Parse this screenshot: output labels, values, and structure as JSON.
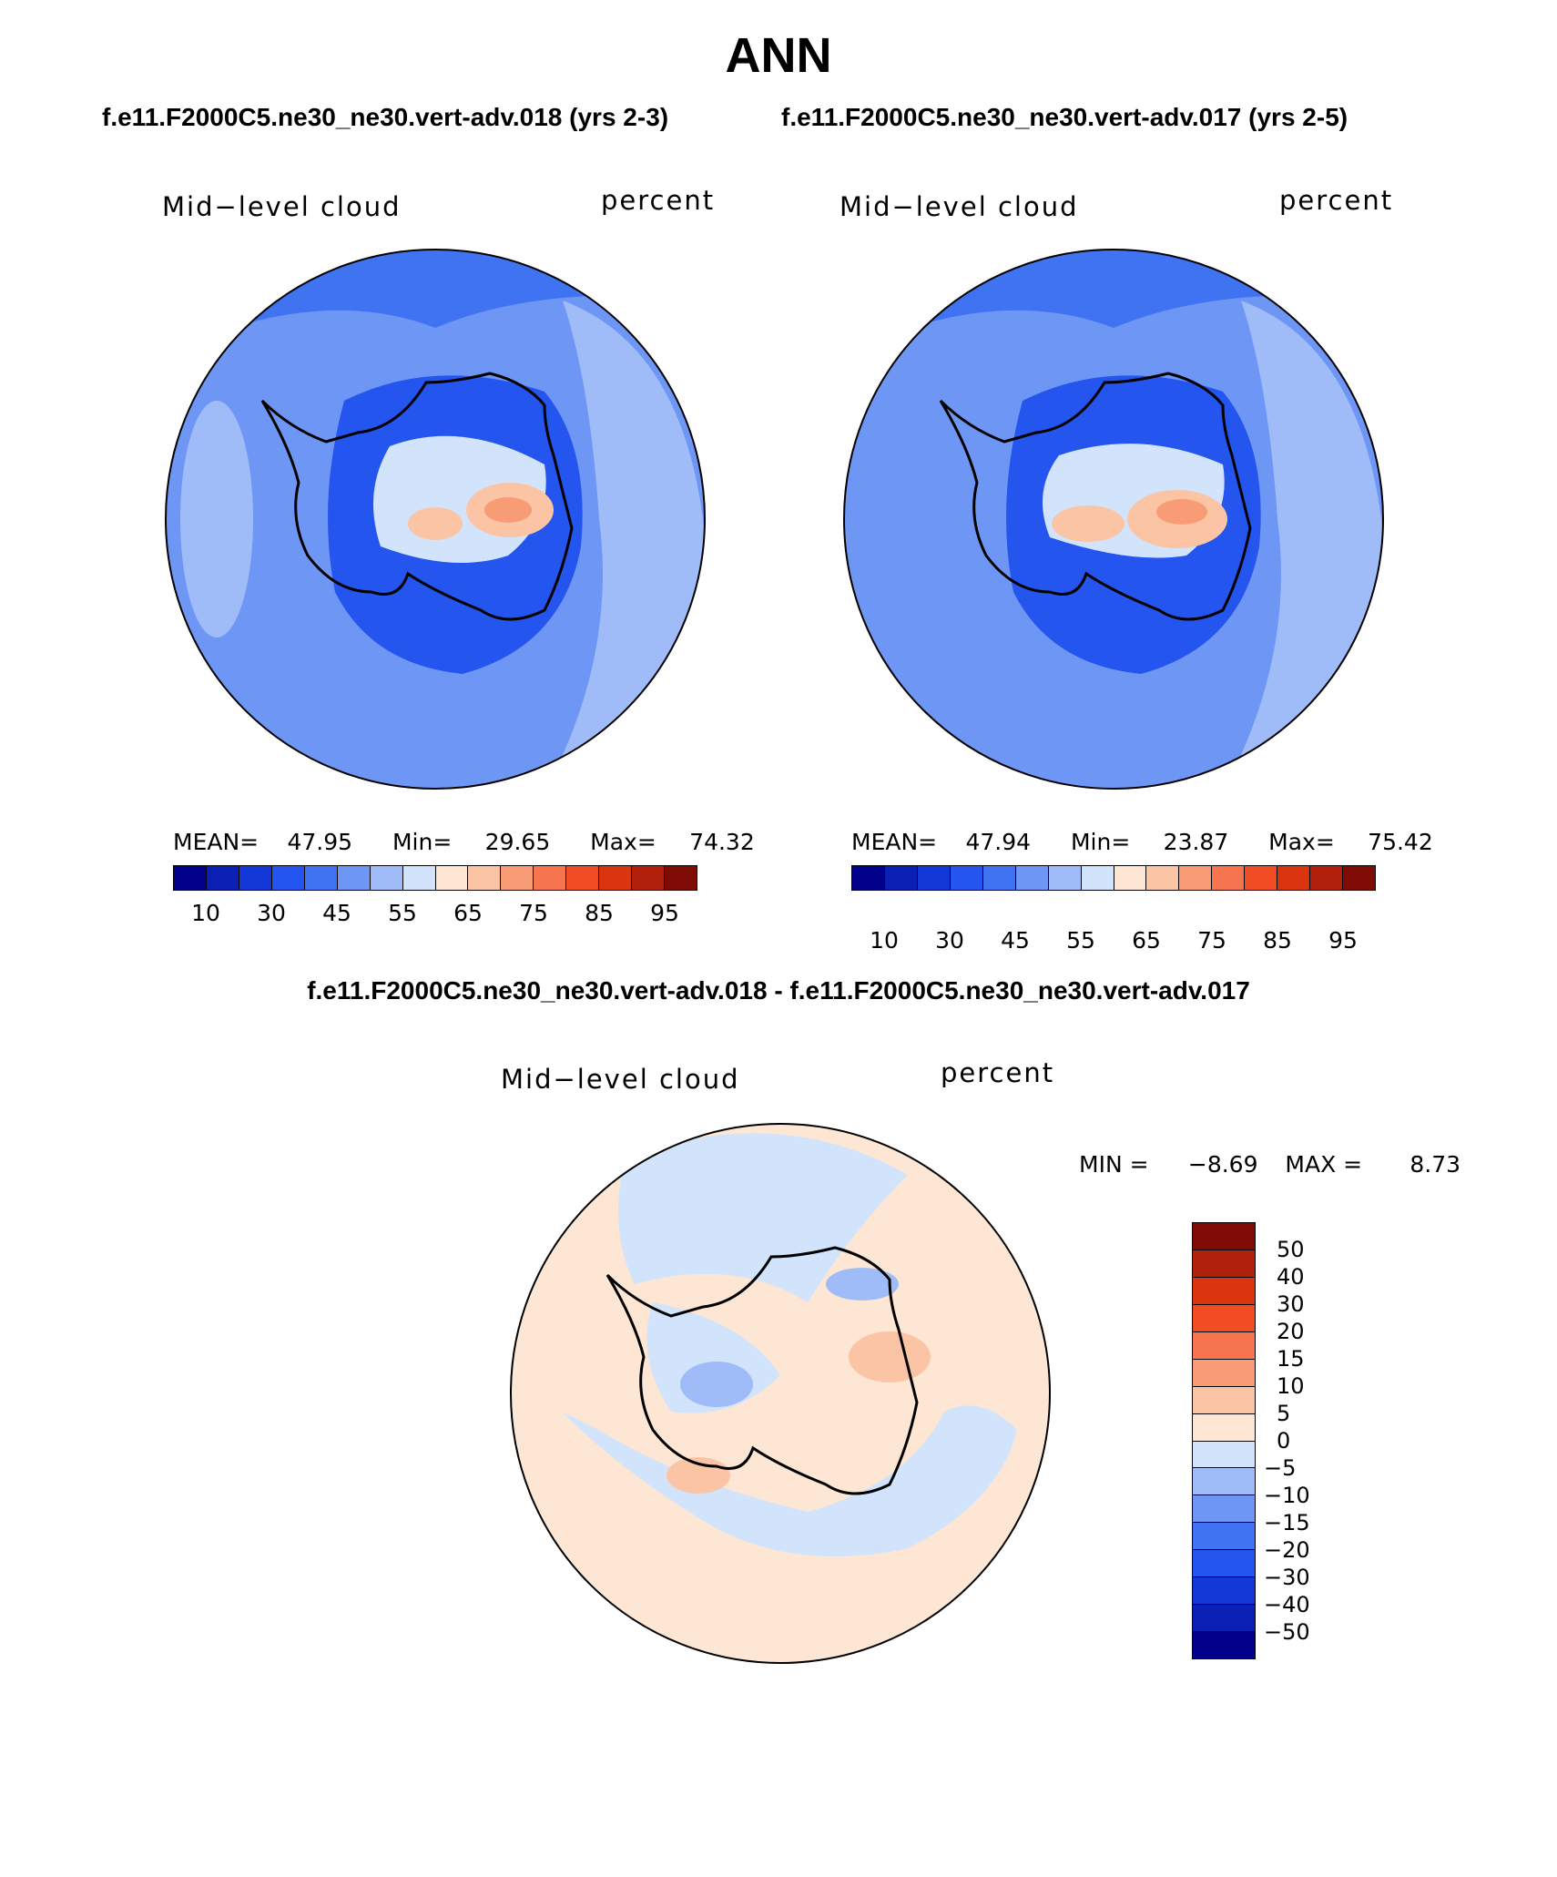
{
  "page_title": "ANN",
  "subheads": {
    "left": "f.e11.F2000C5.ne30_ne30.vert-adv.018 (yrs 2-3)",
    "right": "f.e11.F2000C5.ne30_ne30.vert-adv.017 (yrs 2-5)",
    "diff": "f.e11.F2000C5.ne30_ne30.vert-adv.018 - f.e11.F2000C5.ne30_ne30.vert-adv.017"
  },
  "panels": [
    {
      "variable": "Mid−level cloud",
      "units": "percent",
      "mean_label": "MEAN=",
      "mean": "47.95",
      "min_label": "Min=",
      "min": "29.65",
      "max_label": "Max=",
      "max": "74.32"
    },
    {
      "variable": "Mid−level cloud",
      "units": "percent",
      "mean_label": "MEAN=",
      "mean": "47.94",
      "min_label": "Min=",
      "min": "23.87",
      "max_label": "Max=",
      "max": "75.42"
    }
  ],
  "diff_panel": {
    "variable": "Mid−level cloud",
    "units": "percent",
    "min_label": "MIN =",
    "min": "−8.69",
    "max_label": "MAX =",
    "max": "8.73"
  },
  "colorbar_abs": {
    "tick_labels": [
      "10",
      "30",
      "45",
      "55",
      "65",
      "75",
      "85",
      "95"
    ],
    "colors": [
      "#00008b",
      "#0a1fb4",
      "#1238d8",
      "#2455ee",
      "#3f73f2",
      "#6e97f5",
      "#9fbcf8",
      "#d2e4fb",
      "#fde6d4",
      "#fbc4a4",
      "#f89c76",
      "#f6744e",
      "#f04d24",
      "#d9350f",
      "#b0200b",
      "#7e0c05"
    ]
  },
  "colorbar_diff": {
    "tick_labels": [
      "50",
      "40",
      "30",
      "20",
      "15",
      "10",
      "5",
      "0",
      "−5",
      "−10",
      "−15",
      "−20",
      "−30",
      "−40",
      "−50"
    ],
    "colors": [
      "#7e0c05",
      "#b0200b",
      "#d9350f",
      "#f04d24",
      "#f6744e",
      "#f89c76",
      "#fbc4a4",
      "#fde6d4",
      "#d2e4fb",
      "#9fbcf8",
      "#6e97f5",
      "#3f73f2",
      "#2455ee",
      "#1238d8",
      "#0a1fb4",
      "#00008b"
    ]
  },
  "map_colors": {
    "ocean_abs": "#9fbcf8",
    "land_abs": "#3f73f2",
    "pos_diff": "#fde6d4",
    "neg_diff": "#d2e4fb"
  }
}
